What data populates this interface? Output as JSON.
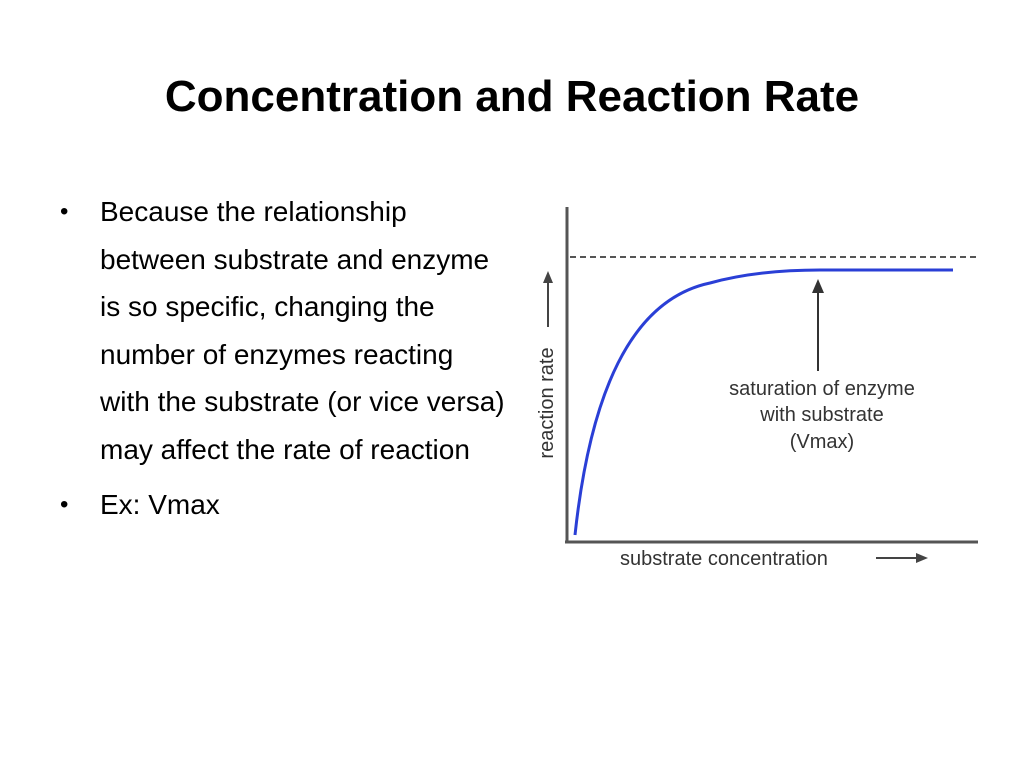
{
  "slide": {
    "title": "Concentration and Reaction Rate",
    "bullets": [
      "Because the relationship between substrate and enzyme is so specific, changing the number of enzymes reacting with the substrate (or vice versa) may affect the rate of reaction",
      "Ex: Vmax"
    ],
    "bullet_glyph": "•"
  },
  "figure": {
    "ylabel": "reaction rate",
    "xlabel": "substrate concentration",
    "annotation_lines": [
      "saturation of enzyme",
      "with substrate",
      "(Vmax)"
    ],
    "curve_color": "#2a3fd6",
    "vmax_line_style": "dashed"
  }
}
